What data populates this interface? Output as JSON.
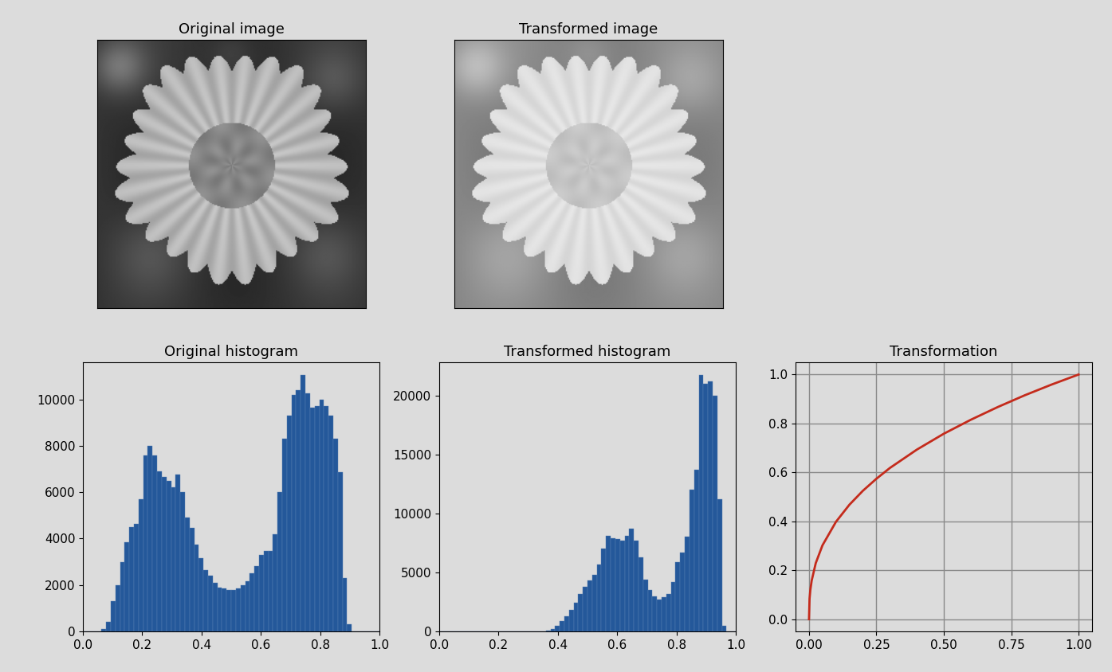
{
  "chart_data": [
    {
      "type": "image",
      "title": "Original image",
      "tick_labels": false
    },
    {
      "type": "image",
      "title": "Transformed image",
      "tick_labels": false
    },
    {
      "type": "histogram",
      "title": "Original histogram",
      "color": "#24589a",
      "grid": false,
      "bins": [
        0,
        0.015625,
        0.03125,
        0.046875,
        0.0625,
        0.078125,
        0.09375,
        0.109375,
        0.125,
        0.140625,
        0.15625,
        0.171875,
        0.1875,
        0.203125,
        0.21875,
        0.234375,
        0.25,
        0.265625,
        0.28125,
        0.296875,
        0.3125,
        0.328125,
        0.34375,
        0.359375,
        0.375,
        0.390625,
        0.40625,
        0.421875,
        0.4375,
        0.453125,
        0.46875,
        0.484375,
        0.5,
        0.515625,
        0.53125,
        0.546875,
        0.5625,
        0.578125,
        0.59375,
        0.609375,
        0.625,
        0.640625,
        0.65625,
        0.671875,
        0.6875,
        0.703125,
        0.71875,
        0.734375,
        0.75,
        0.765625,
        0.78125,
        0.796875,
        0.8125,
        0.828125,
        0.84375,
        0.859375,
        0.875,
        0.890625,
        0.90625,
        0.921875,
        0.9375,
        0.953125,
        0.96875,
        0.984375,
        1.0
      ],
      "values": [
        0,
        0,
        0,
        0,
        100,
        400,
        1300,
        2000,
        3000,
        3850,
        4500,
        4650,
        5700,
        7600,
        8000,
        7600,
        6900,
        6650,
        6500,
        6200,
        6750,
        6000,
        4900,
        4450,
        3750,
        3150,
        2650,
        2400,
        2100,
        1900,
        1850,
        1800,
        1800,
        1850,
        2000,
        2150,
        2500,
        2800,
        3300,
        3450,
        3450,
        4200,
        6000,
        8300,
        9300,
        10200,
        10400,
        11050,
        10250,
        9650,
        9700,
        10000,
        9700,
        9300,
        8300,
        6850,
        2300,
        300,
        0,
        0,
        0,
        0,
        0,
        0
      ],
      "xlim": [
        0,
        1
      ],
      "xticks": [
        {
          "value": 0,
          "label": "0.0"
        },
        0.2,
        0.4,
        0.6,
        0.8,
        {
          "value": 1,
          "label": "1.0"
        }
      ],
      "ylim": [
        0,
        11600
      ],
      "yticks": [
        0,
        2000,
        4000,
        6000,
        8000,
        10000
      ]
    },
    {
      "type": "histogram",
      "title": "Transformed histogram",
      "color": "#24589a",
      "grid": false,
      "bins": [
        0,
        0.015625,
        0.03125,
        0.046875,
        0.0625,
        0.078125,
        0.09375,
        0.109375,
        0.125,
        0.140625,
        0.15625,
        0.171875,
        0.1875,
        0.203125,
        0.21875,
        0.234375,
        0.25,
        0.265625,
        0.28125,
        0.296875,
        0.3125,
        0.328125,
        0.34375,
        0.359375,
        0.375,
        0.390625,
        0.40625,
        0.421875,
        0.4375,
        0.453125,
        0.46875,
        0.484375,
        0.5,
        0.515625,
        0.53125,
        0.546875,
        0.5625,
        0.578125,
        0.59375,
        0.609375,
        0.625,
        0.640625,
        0.65625,
        0.671875,
        0.6875,
        0.703125,
        0.71875,
        0.734375,
        0.75,
        0.765625,
        0.78125,
        0.796875,
        0.8125,
        0.828125,
        0.84375,
        0.859375,
        0.875,
        0.890625,
        0.90625,
        0.921875,
        0.9375,
        0.953125,
        0.96875,
        0.984375,
        1.0
      ],
      "values": [
        0,
        0,
        0,
        0,
        0,
        0,
        0,
        0,
        0,
        0,
        0,
        0,
        0,
        0,
        0,
        0,
        0,
        0,
        0,
        0,
        0,
        0,
        0,
        100,
        200,
        500,
        900,
        1300,
        1800,
        2400,
        3200,
        3800,
        4300,
        4800,
        5700,
        7000,
        8100,
        7900,
        7800,
        7700,
        8100,
        8700,
        7700,
        6300,
        4400,
        3500,
        3000,
        2700,
        2900,
        3200,
        4200,
        5900,
        6700,
        8000,
        12000,
        13700,
        21700,
        21000,
        21200,
        20000,
        11200,
        500,
        0,
        0
      ],
      "xlim": [
        0,
        1
      ],
      "xticks": [
        {
          "value": 0,
          "label": "0.0"
        },
        0.2,
        0.4,
        0.6,
        0.8,
        {
          "value": 1,
          "label": "1.0"
        }
      ],
      "ylim": [
        0,
        22800
      ],
      "yticks": [
        0,
        5000,
        10000,
        15000,
        20000
      ]
    },
    {
      "type": "line",
      "title": "Transformation",
      "color": "#c42b1c",
      "grid": true,
      "x": [
        0,
        0.002,
        0.005,
        0.01,
        0.025,
        0.05,
        0.1,
        0.15,
        0.2,
        0.25,
        0.3,
        0.4,
        0.5,
        0.6,
        0.7,
        0.8,
        0.9,
        1.0
      ],
      "values": [
        0,
        0.083,
        0.12,
        0.158,
        0.229,
        0.302,
        0.398,
        0.468,
        0.525,
        0.574,
        0.618,
        0.693,
        0.758,
        0.815,
        0.867,
        0.915,
        0.959,
        1.0
      ],
      "xlim": [
        -0.05,
        1.05
      ],
      "xticks": [
        {
          "value": 0,
          "label": "0.00"
        },
        {
          "value": 0.25,
          "label": "0.25"
        },
        {
          "value": 0.5,
          "label": "0.50"
        },
        {
          "value": 0.75,
          "label": "0.75"
        },
        {
          "value": 1,
          "label": "1.00"
        }
      ],
      "ylim": [
        -0.05,
        1.05
      ],
      "yticks": [
        {
          "value": 0,
          "label": "0.0"
        },
        0.2,
        0.4,
        0.6,
        0.8,
        {
          "value": 1,
          "label": "1.0"
        }
      ]
    }
  ]
}
